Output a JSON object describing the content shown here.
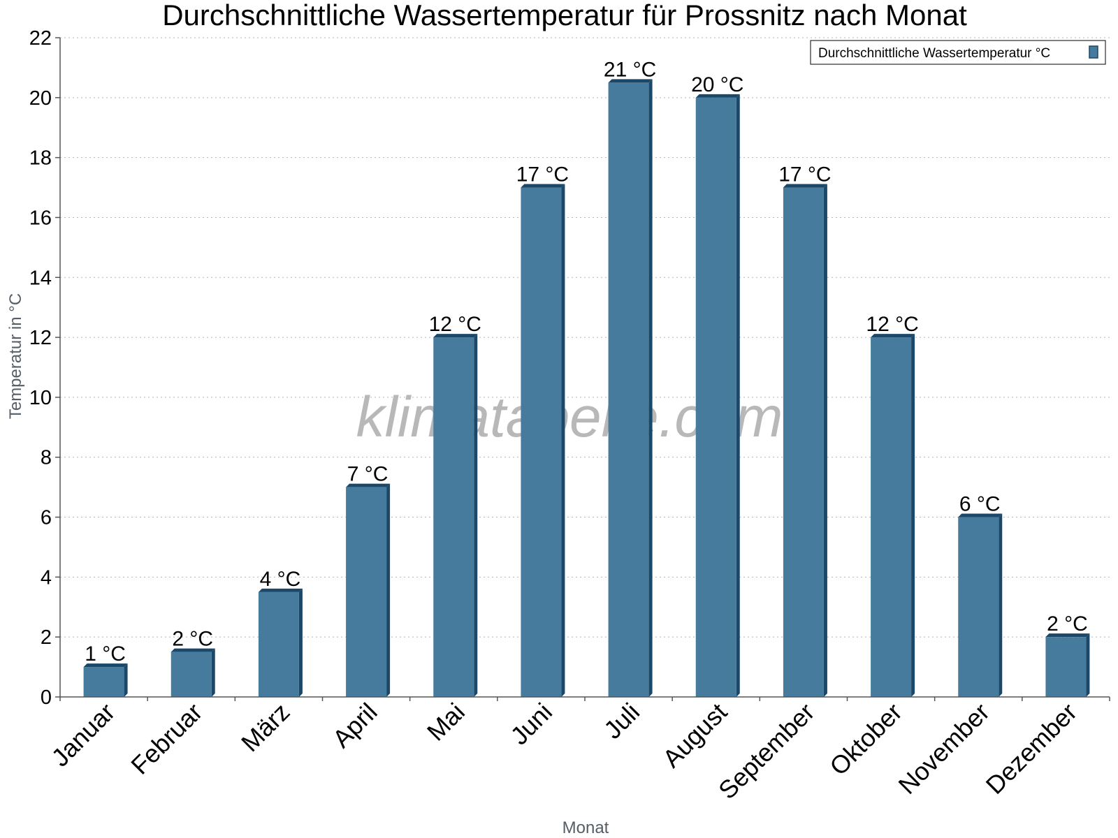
{
  "chart_data": {
    "type": "bar",
    "title": "Durchschnittliche Wassertemperatur für Prossnitz nach Monat",
    "xlabel": "Monat",
    "ylabel": "Temperatur in °C",
    "ylim": [
      0,
      22
    ],
    "yticks": [
      "0",
      "2",
      "4",
      "6",
      "8",
      "10",
      "12",
      "14",
      "16",
      "18",
      "20",
      "22"
    ],
    "grid": true,
    "legend_position": "top-right",
    "categories": [
      "Januar",
      "Februar",
      "März",
      "April",
      "Mai",
      "Juni",
      "Juli",
      "August",
      "September",
      "Oktober",
      "November",
      "Dezember"
    ],
    "series": [
      {
        "name": "Durchschnittliche Wassertemperatur °C",
        "values": [
          1,
          1.5,
          3.5,
          7,
          12,
          17,
          20.5,
          20,
          17,
          12,
          6,
          2
        ],
        "data_labels": [
          "1 °C",
          "2 °C",
          "4 °C",
          "7 °C",
          "12 °C",
          "17 °C",
          "21 °C",
          "20 °C",
          "17 °C",
          "12 °C",
          "6 °C",
          "2 °C"
        ],
        "color": "#467b9e",
        "shade_color": "#1b4868"
      }
    ]
  },
  "watermark": "klimatabelle.com"
}
